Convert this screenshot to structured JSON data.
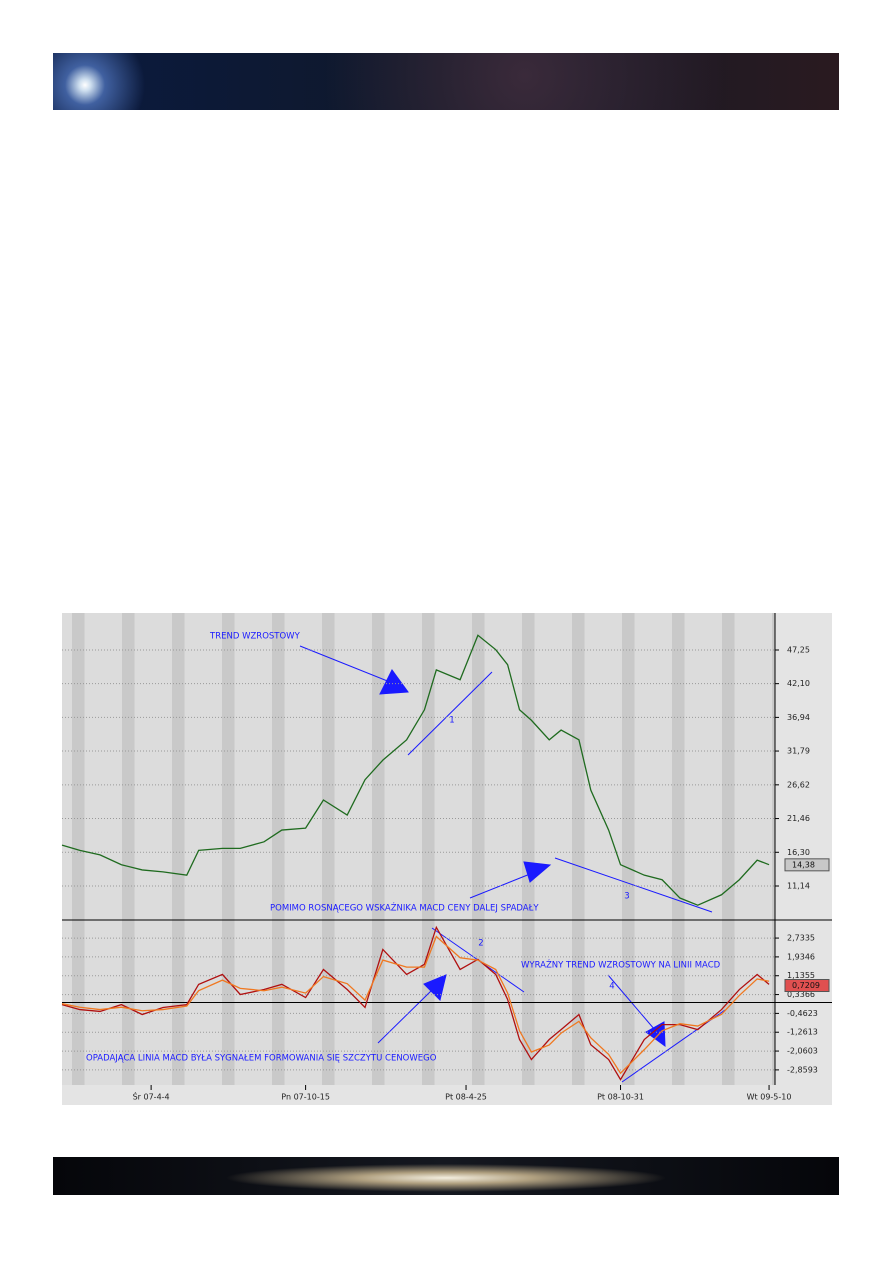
{
  "chart_data": [
    {
      "type": "line",
      "x": [
        0,
        3,
        6.4,
        10,
        13.5,
        17,
        21,
        23,
        27,
        30,
        34,
        37,
        41,
        44,
        48,
        51,
        54,
        58,
        61,
        63,
        67,
        70,
        73,
        75,
        77,
        79,
        82,
        84,
        87,
        89,
        92,
        94,
        98,
        101,
        104,
        107,
        111,
        114,
        117,
        119
      ],
      "values": [
        17.4,
        16.6,
        15.9,
        14.4,
        13.6,
        13.3,
        12.8,
        16.6,
        16.9,
        16.9,
        17.9,
        19.7,
        20.0,
        24.3,
        22.0,
        27.4,
        30.4,
        33.5,
        38.1,
        44.2,
        42.7,
        49.5,
        47.3,
        45.0,
        38.1,
        36.5,
        33.5,
        35.0,
        33.5,
        25.8,
        19.7,
        14.4,
        12.8,
        12.1,
        9.3,
        8.2,
        9.8,
        12.1,
        15.1,
        14.4
      ],
      "color": "#1f6b1f",
      "xlim": [
        0,
        120
      ],
      "ylim": [
        5.94,
        52.91
      ],
      "yticks": [
        {
          "value": 11.14,
          "label": "11,14"
        },
        {
          "value": 16.3,
          "label": "16,30"
        },
        {
          "value": 21.46,
          "label": "21,46"
        },
        {
          "value": 26.62,
          "label": "26,62"
        },
        {
          "value": 31.79,
          "label": "31,79"
        },
        {
          "value": 36.94,
          "label": "36,94"
        },
        {
          "value": 42.1,
          "label": "42,10"
        },
        {
          "value": 47.25,
          "label": "47,25"
        }
      ],
      "current_value": {
        "value": 14.38,
        "label": "14,38"
      },
      "annotations": [
        "TREND WZROSTOWY",
        "1",
        "POMIMO ROSNĄCEGO WSKAŹNIKA MACD CENY DALEJ SPADAŁY",
        "3"
      ],
      "grid": true
    },
    {
      "type": "line",
      "x": [
        0,
        3,
        6.4,
        10,
        13.5,
        17,
        21,
        23,
        27,
        30,
        34,
        37,
        41,
        44,
        48,
        51,
        54,
        58,
        61,
        63,
        67,
        70,
        73,
        75,
        77,
        79,
        82,
        84,
        87,
        89,
        92,
        94,
        98,
        101,
        104,
        107,
        111,
        114,
        117,
        119
      ],
      "series": [
        {
          "color": "#b01010",
          "values": [
            -0.09,
            -0.3,
            -0.38,
            -0.09,
            -0.51,
            -0.21,
            -0.09,
            0.77,
            1.19,
            0.34,
            0.55,
            0.77,
            0.21,
            1.4,
            0.55,
            -0.21,
            2.25,
            1.19,
            1.62,
            3.19,
            1.4,
            1.83,
            1.19,
            0.13,
            -1.57,
            -2.42,
            -1.57,
            -1.15,
            -0.51,
            -1.79,
            -2.42,
            -3.27,
            -1.57,
            -0.94,
            -0.94,
            -1.15,
            -0.3,
            0.55,
            1.19,
            0.77
          ]
        },
        {
          "color": "#f07820",
          "values": [
            -0.05,
            -0.2,
            -0.3,
            -0.2,
            -0.35,
            -0.3,
            -0.15,
            0.5,
            0.95,
            0.6,
            0.5,
            0.65,
            0.4,
            1.1,
            0.8,
            0.1,
            1.8,
            1.5,
            1.5,
            2.8,
            1.9,
            1.8,
            1.4,
            0.4,
            -1.2,
            -2.1,
            -1.8,
            -1.3,
            -0.8,
            -1.5,
            -2.2,
            -3.0,
            -2.0,
            -1.2,
            -0.9,
            -1.0,
            -0.5,
            0.3,
            1.0,
            0.9
          ]
        }
      ],
      "xlim": [
        0,
        120
      ],
      "ylim": [
        -3.5,
        3.5
      ],
      "yticks": [
        {
          "value": -2.8593,
          "label": "-2,8593"
        },
        {
          "value": -2.0603,
          "label": "-2,0603"
        },
        {
          "value": -1.2613,
          "label": "-1,2613"
        },
        {
          "value": -0.4623,
          "label": "-0,4623"
        },
        {
          "value": 0.3366,
          "label": "0,3366"
        },
        {
          "value": 1.1355,
          "label": "1,1355"
        },
        {
          "value": 1.9346,
          "label": "1,9346"
        },
        {
          "value": 2.7335,
          "label": "2,7335"
        }
      ],
      "xticks": [
        {
          "value": 15,
          "label": "Śr 07-4-4"
        },
        {
          "value": 41,
          "label": "Pn 07-10-15"
        },
        {
          "value": 68,
          "label": "Pt 08-4-25"
        },
        {
          "value": 94,
          "label": "Pt 08-10-31"
        },
        {
          "value": 119,
          "label": "Wt 09-5-10"
        }
      ],
      "current_value": {
        "value": 0.7209,
        "label": "0,7209"
      },
      "annotations": [
        "2",
        "WYRAŹNY TREND WZROSTOWY NA LINII MACD",
        "4",
        "OPADAJĄCA LINIA MACD BYŁA SYGNAŁEM FORMOWANIA SIĘ SZCZYTU CENOWEGO"
      ],
      "grid": true
    }
  ]
}
